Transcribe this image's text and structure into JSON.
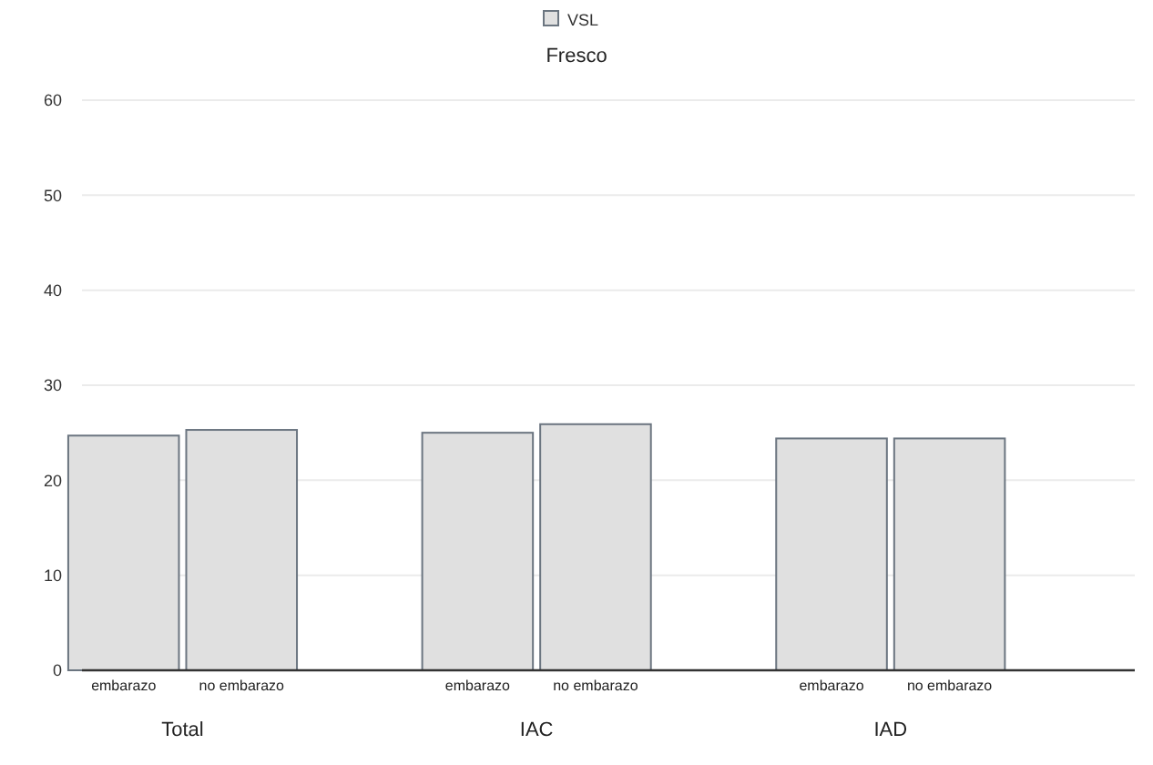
{
  "chart_data": {
    "type": "bar",
    "title": "Fresco",
    "categories": [
      "embarazo",
      "no embarazo",
      "embarazo",
      "no embarazo",
      "embarazo",
      "no embarazo"
    ],
    "series": [
      {
        "name": "VSL",
        "color": "#e0e0e0",
        "values": [
          24.7,
          25.3,
          25.0,
          25.9,
          24.4,
          24.4
        ]
      }
    ],
    "annotations": [
      "Total",
      "IAC",
      "IAD"
    ],
    "ylim": [
      0,
      60
    ],
    "yticks": [
      0,
      10,
      20,
      30,
      40,
      50,
      60
    ],
    "grid": "y",
    "legend": "top"
  }
}
